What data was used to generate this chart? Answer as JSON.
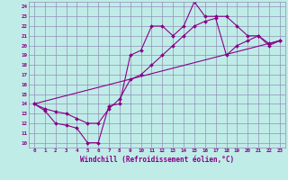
{
  "bg_color": "#c0ece8",
  "grid_color": "#9090b8",
  "line_color": "#880088",
  "xlabel": "Windchill (Refroidissement éolien,°C)",
  "xlim": [
    -0.5,
    23.5
  ],
  "ylim": [
    9.5,
    24.5
  ],
  "xticks": [
    0,
    1,
    2,
    3,
    4,
    5,
    6,
    7,
    8,
    9,
    10,
    11,
    12,
    13,
    14,
    15,
    16,
    17,
    18,
    19,
    20,
    21,
    22,
    23
  ],
  "yticks": [
    10,
    11,
    12,
    13,
    14,
    15,
    16,
    17,
    18,
    19,
    20,
    21,
    22,
    23,
    24
  ],
  "line1_x": [
    0,
    1,
    2,
    3,
    4,
    5,
    6,
    7,
    8,
    9,
    10,
    11,
    12,
    13,
    14,
    15,
    16,
    17,
    18,
    19,
    20,
    21,
    22,
    23
  ],
  "line1_y": [
    14.0,
    13.3,
    12.0,
    11.8,
    11.5,
    10.0,
    10.0,
    13.8,
    14.0,
    19.0,
    19.5,
    22.0,
    22.0,
    21.0,
    22.0,
    24.5,
    23.0,
    23.0,
    23.0,
    22.0,
    21.0,
    21.0,
    20.0,
    20.5
  ],
  "line2_x": [
    0,
    1,
    2,
    3,
    4,
    5,
    6,
    7,
    8,
    9,
    10,
    11,
    12,
    13,
    14,
    15,
    16,
    17,
    18,
    19,
    20,
    21,
    22,
    23
  ],
  "line2_y": [
    14.0,
    13.5,
    13.2,
    13.0,
    12.5,
    12.0,
    12.0,
    13.5,
    14.5,
    16.5,
    17.0,
    18.0,
    19.0,
    20.0,
    21.0,
    22.0,
    22.5,
    22.8,
    19.0,
    20.0,
    20.5,
    21.0,
    20.2,
    20.5
  ],
  "line3_x": [
    0,
    23
  ],
  "line3_y": [
    14.0,
    20.5
  ]
}
